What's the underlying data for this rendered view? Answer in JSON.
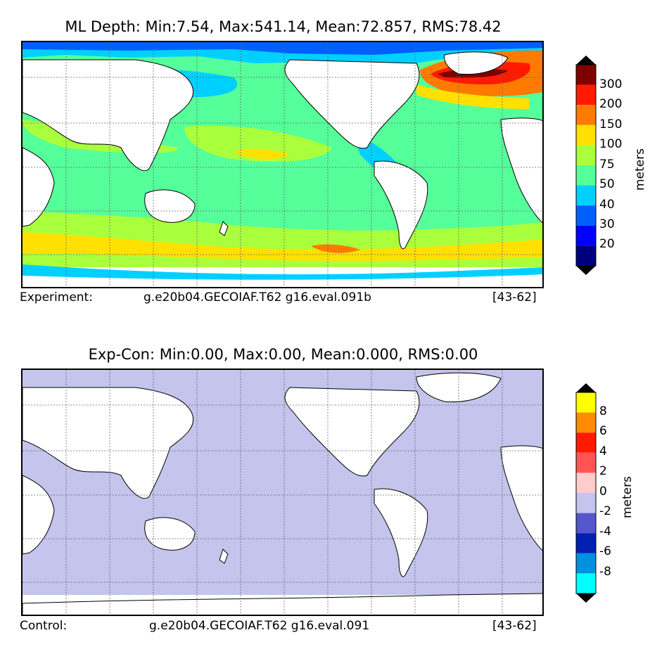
{
  "panels": [
    {
      "title": "ML Depth: Min:7.54, Max:541.14, Mean:72.857, RMS:78.42",
      "caption_label": "Experiment:",
      "caption_run": "g.e20b04.GECOIAF.T62 g16.eval.091b",
      "caption_years": "[43-62]",
      "colorbar": {
        "units": "meters",
        "tick_labels": [
          "20",
          "30",
          "40",
          "50",
          "75",
          "100",
          "150",
          "200",
          "300"
        ],
        "colors": [
          "#00007f",
          "#0000ff",
          "#0060ff",
          "#00d0ff",
          "#55ff99",
          "#aaff3c",
          "#ffe000",
          "#ff7a00",
          "#ff1a00",
          "#7f0000"
        ],
        "extend": "both"
      }
    },
    {
      "title": "Exp-Con: Min:0.00, Max:0.00, Mean:0.000, RMS:0.00",
      "caption_label": "Control:",
      "caption_run": "g.e20b04.GECOIAF.T62 g16.eval.091",
      "caption_years": "[43-62]",
      "colorbar": {
        "units": "meters",
        "tick_labels": [
          "-8",
          "-6",
          "-4",
          "-2",
          "0",
          "2",
          "4",
          "6",
          "8"
        ],
        "colors": [
          "#00ffff",
          "#0090e0",
          "#0020b0",
          "#5555cc",
          "#c4c4ec",
          "#ffcccc",
          "#ff5555",
          "#ff1a00",
          "#ff8c00",
          "#ffff00"
        ],
        "extend": "both"
      }
    }
  ]
}
